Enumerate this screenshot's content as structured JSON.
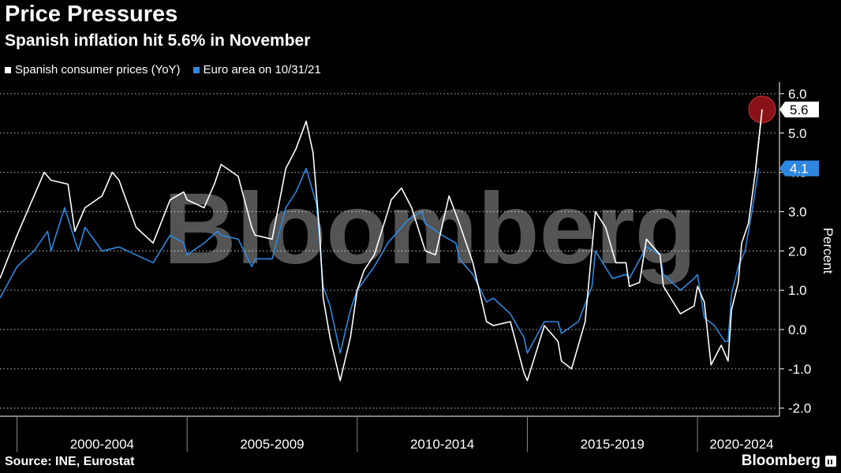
{
  "header": {
    "title": "Price Pressures",
    "subtitle": "Spanish inflation hit 5.6% in November"
  },
  "footer": {
    "source": "Source: INE, Eurostat",
    "brand": "Bloomberg"
  },
  "watermark": "Bloomberg",
  "colors": {
    "background": "#000000",
    "spain": "#ffffff",
    "euro": "#2f88e0",
    "highlight_circle": "#a0151b"
  },
  "chart_data": {
    "type": "line",
    "title": "Price Pressures",
    "subtitle": "Spanish inflation hit 5.6% in November",
    "ylabel": "Percent",
    "xlabel": "",
    "ylim": [
      -2.0,
      6.0
    ],
    "yticks": [
      "6.0",
      "5.0",
      "4.0",
      "3.0",
      "2.0",
      "1.0",
      "0.0",
      "-1.0",
      "-2.0"
    ],
    "xtick_labels": [
      "2000-2004",
      "2005-2009",
      "2010-2014",
      "2015-2019",
      "2020-2024"
    ],
    "x_range": [
      1999.5,
      2021.9
    ],
    "grid": "dotted horizontal",
    "legend": "top-left",
    "last_value_labels": [
      {
        "series": "Spanish consumer prices (YoY)",
        "value": "5.6"
      },
      {
        "series": "Euro area on 10/31/21",
        "value": "4.1"
      }
    ],
    "series": [
      {
        "name": "Spanish consumer prices (YoY)",
        "color": "#ffffff",
        "points": [
          [
            1999.5,
            1.3
          ],
          [
            2000.0,
            2.4
          ],
          [
            2000.5,
            3.4
          ],
          [
            2000.8,
            4.0
          ],
          [
            2001.0,
            3.8
          ],
          [
            2001.5,
            3.7
          ],
          [
            2001.7,
            2.5
          ],
          [
            2002.0,
            3.1
          ],
          [
            2002.5,
            3.4
          ],
          [
            2002.8,
            4.0
          ],
          [
            2003.0,
            3.8
          ],
          [
            2003.5,
            2.6
          ],
          [
            2004.0,
            2.2
          ],
          [
            2004.5,
            3.3
          ],
          [
            2004.9,
            3.5
          ],
          [
            2005.0,
            3.3
          ],
          [
            2005.5,
            3.1
          ],
          [
            2005.8,
            3.7
          ],
          [
            2006.0,
            4.2
          ],
          [
            2006.5,
            3.9
          ],
          [
            2006.9,
            2.6
          ],
          [
            2007.0,
            2.4
          ],
          [
            2007.5,
            2.3
          ],
          [
            2007.9,
            4.1
          ],
          [
            2008.2,
            4.6
          ],
          [
            2008.5,
            5.3
          ],
          [
            2008.7,
            4.5
          ],
          [
            2008.9,
            2.4
          ],
          [
            2009.0,
            0.8
          ],
          [
            2009.2,
            -0.2
          ],
          [
            2009.5,
            -1.3
          ],
          [
            2009.8,
            -0.2
          ],
          [
            2010.0,
            1.0
          ],
          [
            2010.2,
            1.5
          ],
          [
            2010.5,
            1.9
          ],
          [
            2010.9,
            3.0
          ],
          [
            2011.0,
            3.3
          ],
          [
            2011.3,
            3.6
          ],
          [
            2011.6,
            3.1
          ],
          [
            2012.0,
            2.0
          ],
          [
            2012.3,
            1.9
          ],
          [
            2012.7,
            3.4
          ],
          [
            2013.0,
            2.7
          ],
          [
            2013.4,
            1.7
          ],
          [
            2013.8,
            0.2
          ],
          [
            2014.0,
            0.1
          ],
          [
            2014.5,
            0.2
          ],
          [
            2014.9,
            -1.1
          ],
          [
            2015.0,
            -1.3
          ],
          [
            2015.5,
            0.1
          ],
          [
            2015.9,
            -0.3
          ],
          [
            2016.0,
            -0.8
          ],
          [
            2016.3,
            -1.0
          ],
          [
            2016.7,
            0.2
          ],
          [
            2017.0,
            3.0
          ],
          [
            2017.3,
            2.6
          ],
          [
            2017.6,
            1.7
          ],
          [
            2017.9,
            1.7
          ],
          [
            2018.0,
            1.1
          ],
          [
            2018.3,
            1.2
          ],
          [
            2018.5,
            2.3
          ],
          [
            2018.9,
            1.9
          ],
          [
            2019.0,
            1.1
          ],
          [
            2019.5,
            0.4
          ],
          [
            2019.9,
            0.6
          ],
          [
            2020.0,
            1.1
          ],
          [
            2020.2,
            0.7
          ],
          [
            2020.4,
            -0.9
          ],
          [
            2020.7,
            -0.4
          ],
          [
            2020.9,
            -0.8
          ],
          [
            2021.0,
            0.5
          ],
          [
            2021.2,
            1.2
          ],
          [
            2021.3,
            2.2
          ],
          [
            2021.5,
            2.7
          ],
          [
            2021.7,
            4.0
          ],
          [
            2021.9,
            5.6
          ]
        ]
      },
      {
        "name": "Euro area on 10/31/21",
        "color": "#2f88e0",
        "points": [
          [
            1999.5,
            0.8
          ],
          [
            2000.0,
            1.6
          ],
          [
            2000.5,
            2.0
          ],
          [
            2000.9,
            2.5
          ],
          [
            2001.0,
            2.0
          ],
          [
            2001.4,
            3.1
          ],
          [
            2001.8,
            2.0
          ],
          [
            2002.0,
            2.6
          ],
          [
            2002.5,
            2.0
          ],
          [
            2003.0,
            2.1
          ],
          [
            2003.5,
            1.9
          ],
          [
            2004.0,
            1.7
          ],
          [
            2004.5,
            2.4
          ],
          [
            2004.9,
            2.2
          ],
          [
            2005.0,
            1.9
          ],
          [
            2005.5,
            2.2
          ],
          [
            2005.9,
            2.5
          ],
          [
            2006.0,
            2.4
          ],
          [
            2006.5,
            2.3
          ],
          [
            2006.9,
            1.6
          ],
          [
            2007.0,
            1.8
          ],
          [
            2007.5,
            1.8
          ],
          [
            2007.9,
            3.1
          ],
          [
            2008.2,
            3.5
          ],
          [
            2008.5,
            4.1
          ],
          [
            2008.8,
            3.2
          ],
          [
            2009.0,
            1.1
          ],
          [
            2009.2,
            0.6
          ],
          [
            2009.5,
            -0.6
          ],
          [
            2009.8,
            0.5
          ],
          [
            2010.0,
            1.0
          ],
          [
            2010.5,
            1.6
          ],
          [
            2010.9,
            2.2
          ],
          [
            2011.0,
            2.3
          ],
          [
            2011.5,
            2.8
          ],
          [
            2011.9,
            3.0
          ],
          [
            2012.0,
            2.7
          ],
          [
            2012.5,
            2.4
          ],
          [
            2012.9,
            2.2
          ],
          [
            2013.0,
            1.8
          ],
          [
            2013.4,
            1.4
          ],
          [
            2013.8,
            0.7
          ],
          [
            2014.0,
            0.8
          ],
          [
            2014.5,
            0.4
          ],
          [
            2014.9,
            -0.2
          ],
          [
            2015.0,
            -0.6
          ],
          [
            2015.5,
            0.2
          ],
          [
            2015.9,
            0.2
          ],
          [
            2016.0,
            -0.1
          ],
          [
            2016.5,
            0.2
          ],
          [
            2016.9,
            1.1
          ],
          [
            2017.0,
            2.0
          ],
          [
            2017.5,
            1.3
          ],
          [
            2017.9,
            1.4
          ],
          [
            2018.0,
            1.3
          ],
          [
            2018.5,
            2.1
          ],
          [
            2018.9,
            1.9
          ],
          [
            2019.0,
            1.4
          ],
          [
            2019.5,
            1.0
          ],
          [
            2019.9,
            1.3
          ],
          [
            2020.0,
            1.4
          ],
          [
            2020.2,
            0.3
          ],
          [
            2020.5,
            0.1
          ],
          [
            2020.8,
            -0.3
          ],
          [
            2020.9,
            -0.3
          ],
          [
            2021.0,
            0.9
          ],
          [
            2021.2,
            1.6
          ],
          [
            2021.4,
            2.0
          ],
          [
            2021.6,
            3.0
          ],
          [
            2021.8,
            4.1
          ]
        ]
      }
    ]
  }
}
